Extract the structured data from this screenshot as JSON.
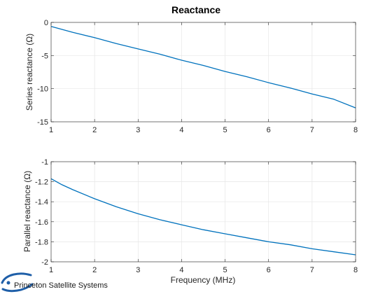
{
  "chart_data": [
    {
      "type": "line",
      "title": "Reactance",
      "xlabel": "",
      "ylabel": "Series reactance (Ω)",
      "xlim": [
        1,
        8
      ],
      "ylim": [
        -15,
        0
      ],
      "xticks": [
        1,
        2,
        3,
        4,
        5,
        6,
        7,
        8
      ],
      "yticks": [
        0,
        -5,
        -10,
        -15
      ],
      "grid": true,
      "color": "#0072BD",
      "series": [
        {
          "x": [
            1,
            1.5,
            2,
            2.5,
            3,
            3.5,
            4,
            4.5,
            5,
            5.5,
            6,
            6.5,
            7,
            7.5,
            8
          ],
          "values": [
            -0.6,
            -1.5,
            -2.3,
            -3.2,
            -4.0,
            -4.8,
            -5.7,
            -6.5,
            -7.4,
            -8.2,
            -9.1,
            -9.9,
            -10.8,
            -11.6,
            -12.9
          ]
        }
      ]
    },
    {
      "type": "line",
      "title": "",
      "xlabel": "Frequency (MHz)",
      "ylabel": "Parallel reactance (Ω)",
      "xlim": [
        1,
        8
      ],
      "ylim": [
        -2,
        -1
      ],
      "xticks": [
        1,
        2,
        3,
        4,
        5,
        6,
        7,
        8
      ],
      "yticks": [
        -1,
        -1.2,
        -1.4,
        -1.6,
        -1.8,
        -2
      ],
      "grid": true,
      "color": "#0072BD",
      "series": [
        {
          "x": [
            1,
            1.25,
            1.5,
            2,
            2.5,
            3,
            3.5,
            4,
            4.5,
            5,
            5.5,
            6,
            6.5,
            7,
            7.5,
            8
          ],
          "values": [
            -1.17,
            -1.23,
            -1.28,
            -1.37,
            -1.45,
            -1.52,
            -1.58,
            -1.63,
            -1.68,
            -1.72,
            -1.76,
            -1.8,
            -1.83,
            -1.87,
            -1.9,
            -1.93
          ]
        }
      ]
    }
  ],
  "branding": {
    "company": "Princeton Satellite Systems"
  }
}
